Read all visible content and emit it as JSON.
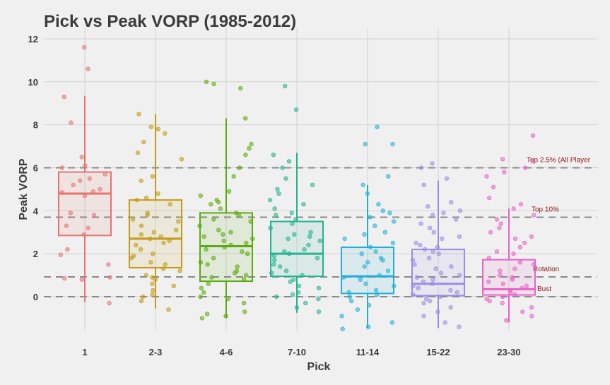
{
  "chart_data": {
    "type": "boxplot",
    "title": "Pick vs Peak VORP (1985-2012)",
    "xlabel": "Pick",
    "ylabel": "Peak VORP",
    "ylim": [
      -1.2,
      12.3
    ],
    "yticks": [
      0,
      2,
      4,
      6,
      8,
      10,
      12
    ],
    "grid": true,
    "legend": "none",
    "points_note": "The point lists are an illustrative sample of the jittered points, not a full extraction. The screenshot has far more points per group than are listed, and most low/dense values are approximate. Box statistics were read directly from the image.",
    "reference_lines": [
      {
        "label": "Top 2.5% (All Player",
        "value": 6.0
      },
      {
        "label": "Top 10%",
        "value": 3.7
      },
      {
        "label": "Rotation",
        "value": 0.92
      },
      {
        "label": "Bust",
        "value": 0.0
      }
    ],
    "categories": [
      "1",
      "2-3",
      "4-6",
      "7-10",
      "11-14",
      "15-22",
      "23-30"
    ],
    "series": [
      {
        "name": "1",
        "color": "#e8736f",
        "box": {
          "whisker_low": -0.25,
          "q1": 2.85,
          "median": 4.8,
          "q3": 5.8,
          "whisker_high": 9.35
        },
        "points": [
          11.6,
          10.6,
          9.3,
          8.1,
          6.5,
          6.1,
          6.0,
          5.7,
          5.5,
          5.4,
          5.2,
          5.0,
          4.9,
          4.85,
          4.7,
          3.9,
          3.8,
          3.3,
          3.2,
          2.9,
          2.2,
          1.95,
          1.5,
          0.9,
          0.85,
          0.8,
          -0.3
        ]
      },
      {
        "name": "2-3",
        "color": "#c39a14",
        "box": {
          "whisker_low": -0.55,
          "q1": 1.35,
          "median": 2.7,
          "q3": 4.5,
          "whisker_high": 8.5
        },
        "points": [
          8.5,
          7.9,
          7.8,
          7.6,
          7.2,
          6.7,
          6.4,
          5.6,
          5.4,
          4.8,
          4.6,
          4.5,
          4.3,
          3.9,
          3.8,
          3.6,
          3.5,
          3.3,
          3.1,
          3.0,
          2.9,
          2.8,
          2.7,
          2.6,
          2.5,
          2.4,
          2.2,
          2.0,
          1.9,
          1.8,
          1.6,
          1.5,
          1.3,
          1.2,
          1.0,
          0.9,
          0.8,
          0.6,
          0.5,
          0.3,
          0.1,
          0.0,
          -0.2,
          -0.6
        ]
      },
      {
        "name": "4-6",
        "color": "#5aab0c",
        "box": {
          "whisker_low": -1.0,
          "q1": 0.72,
          "median": 2.35,
          "q3": 3.9,
          "whisker_high": 8.3
        },
        "points": [
          10.0,
          9.9,
          9.7,
          8.3,
          7.1,
          6.9,
          6.6,
          6.0,
          5.6,
          4.9,
          4.7,
          4.5,
          4.4,
          4.3,
          4.1,
          3.9,
          3.8,
          3.6,
          3.5,
          3.3,
          3.1,
          3.0,
          2.9,
          2.8,
          2.7,
          2.6,
          2.5,
          2.4,
          2.3,
          2.2,
          2.1,
          2.0,
          1.8,
          1.6,
          1.5,
          1.4,
          1.2,
          1.1,
          1.0,
          0.9,
          0.8,
          0.6,
          0.4,
          0.2,
          0.0,
          -0.1,
          -0.3,
          -0.7,
          -0.8,
          -0.9,
          -1.0
        ]
      },
      {
        "name": "7-10",
        "color": "#1fb58f",
        "box": {
          "whisker_low": -0.75,
          "q1": 0.95,
          "median": 2.0,
          "q3": 3.5,
          "whisker_high": 6.7
        },
        "points": [
          9.8,
          8.7,
          6.6,
          6.3,
          6.0,
          5.5,
          5.2,
          5.0,
          4.8,
          4.5,
          4.3,
          4.1,
          3.9,
          3.8,
          3.6,
          3.4,
          3.2,
          3.0,
          2.9,
          2.8,
          2.7,
          2.6,
          2.4,
          2.2,
          2.1,
          2.0,
          1.9,
          1.8,
          1.7,
          1.5,
          1.4,
          1.2,
          1.1,
          1.0,
          0.8,
          0.7,
          0.5,
          0.4,
          0.2,
          0.1,
          0.0,
          -0.1,
          -0.3,
          -0.5,
          -0.7
        ]
      },
      {
        "name": "11-14",
        "color": "#1fb0d8",
        "box": {
          "whisker_low": -1.45,
          "q1": 0.15,
          "median": 0.95,
          "q3": 2.3,
          "whisker_high": 5.2
        },
        "points": [
          7.9,
          7.1,
          7.1,
          5.6,
          5.2,
          4.8,
          4.3,
          4.0,
          3.9,
          3.7,
          3.5,
          3.3,
          3.0,
          2.9,
          2.7,
          2.5,
          2.3,
          2.1,
          2.0,
          1.8,
          1.7,
          1.6,
          1.4,
          1.2,
          1.0,
          0.9,
          0.8,
          0.6,
          0.5,
          0.3,
          0.2,
          0.1,
          0.0,
          -0.2,
          -0.4,
          -0.6,
          -0.9,
          -1.2,
          -1.4,
          -1.5
        ]
      },
      {
        "name": "15-22",
        "color": "#9b8be6",
        "box": {
          "whisker_low": -1.45,
          "q1": 0.05,
          "median": 0.6,
          "q3": 2.2,
          "whisker_high": 5.4
        },
        "points": [
          6.2,
          6.0,
          5.5,
          5.2,
          4.4,
          4.2,
          4.0,
          3.9,
          3.8,
          3.6,
          3.4,
          3.2,
          3.0,
          2.8,
          2.7,
          2.5,
          2.4,
          2.3,
          2.2,
          2.1,
          2.0,
          1.8,
          1.7,
          1.5,
          1.4,
          1.3,
          1.1,
          1.0,
          0.9,
          0.8,
          0.7,
          0.6,
          0.5,
          0.4,
          0.3,
          0.2,
          0.1,
          0.0,
          -0.1,
          -0.2,
          -0.3,
          -0.5,
          -0.7,
          -0.9,
          -1.2,
          -1.4
        ]
      },
      {
        "name": "23-30",
        "color": "#e862c8",
        "box": {
          "whisker_low": -1.2,
          "q1": 0.08,
          "median": 0.35,
          "q3": 1.72,
          "whisker_high": 4.1
        },
        "points": [
          7.5,
          6.4,
          6.3,
          6.0,
          5.8,
          5.6,
          5.1,
          4.6,
          4.3,
          4.1,
          3.8,
          3.6,
          3.4,
          3.2,
          3.0,
          2.8,
          2.7,
          2.5,
          2.3,
          2.1,
          2.0,
          1.8,
          1.6,
          1.5,
          1.3,
          1.2,
          1.0,
          0.9,
          0.8,
          0.7,
          0.6,
          0.5,
          0.4,
          0.3,
          0.2,
          0.1,
          0.0,
          -0.1,
          -0.2,
          -0.3,
          -0.5,
          -0.7,
          -0.9,
          -1.1
        ]
      }
    ]
  }
}
